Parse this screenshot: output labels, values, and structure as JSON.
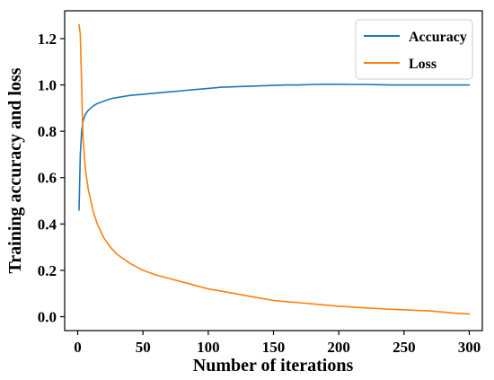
{
  "chart_data": {
    "type": "line",
    "xlabel": "Number of iterations",
    "ylabel": "Training accuracy and loss",
    "xlim": [
      -10,
      310
    ],
    "ylim": [
      -0.06,
      1.32
    ],
    "xticks": [
      0,
      50,
      100,
      150,
      200,
      250,
      300
    ],
    "yticks": [
      0.0,
      0.2,
      0.4,
      0.6,
      0.8,
      1.0,
      1.2
    ],
    "xtick_labels": [
      "0",
      "50",
      "100",
      "150",
      "200",
      "250",
      "300"
    ],
    "ytick_labels": [
      "0.0",
      "0.2",
      "0.4",
      "0.6",
      "0.8",
      "1.0",
      "1.2"
    ],
    "grid": false,
    "legend_position": "top-right",
    "series": [
      {
        "name": "Accuracy",
        "color": "#1f77b4",
        "x": [
          1,
          2,
          3,
          4,
          5,
          6,
          8,
          10,
          12,
          15,
          20,
          25,
          30,
          40,
          50,
          60,
          70,
          80,
          90,
          100,
          110,
          120,
          130,
          140,
          150,
          160,
          170,
          180,
          190,
          200,
          210,
          220,
          230,
          240,
          250,
          260,
          270,
          280,
          290,
          300
        ],
        "y": [
          0.46,
          0.7,
          0.8,
          0.84,
          0.86,
          0.875,
          0.89,
          0.9,
          0.91,
          0.92,
          0.93,
          0.94,
          0.945,
          0.955,
          0.96,
          0.965,
          0.97,
          0.975,
          0.98,
          0.985,
          0.99,
          0.992,
          0.994,
          0.996,
          0.998,
          1.0,
          1.0,
          1.002,
          1.003,
          1.003,
          1.002,
          1.002,
          1.001,
          1.0,
          1.0,
          1.0,
          1.0,
          1.0,
          1.0,
          1.0
        ]
      },
      {
        "name": "Loss",
        "color": "#ff7f0e",
        "x": [
          1,
          2,
          3,
          4,
          5,
          6,
          8,
          10,
          12,
          15,
          20,
          25,
          30,
          40,
          50,
          60,
          70,
          80,
          90,
          100,
          110,
          120,
          130,
          140,
          150,
          160,
          170,
          180,
          190,
          200,
          210,
          220,
          230,
          240,
          250,
          260,
          270,
          280,
          290,
          300
        ],
        "y": [
          1.26,
          1.22,
          1.0,
          0.78,
          0.7,
          0.63,
          0.55,
          0.5,
          0.45,
          0.4,
          0.34,
          0.3,
          0.27,
          0.23,
          0.2,
          0.18,
          0.165,
          0.15,
          0.135,
          0.12,
          0.11,
          0.1,
          0.09,
          0.08,
          0.07,
          0.065,
          0.06,
          0.055,
          0.05,
          0.045,
          0.042,
          0.038,
          0.035,
          0.032,
          0.03,
          0.027,
          0.025,
          0.02,
          0.015,
          0.012
        ]
      }
    ]
  }
}
